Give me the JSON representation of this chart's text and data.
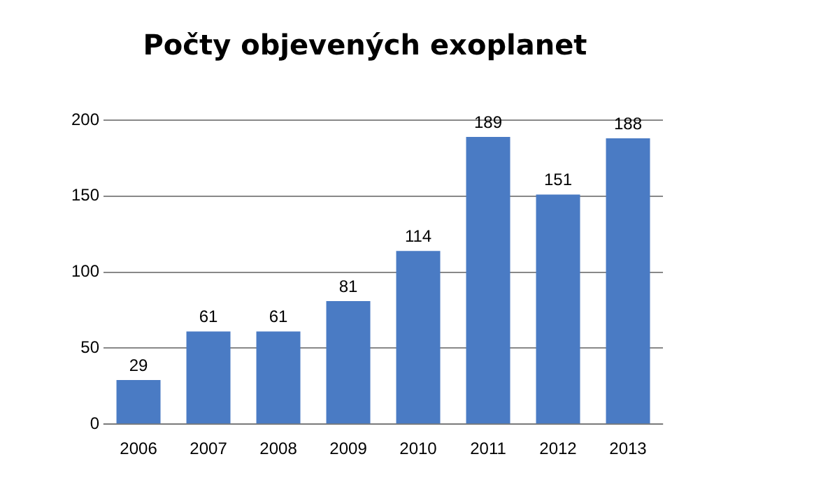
{
  "chart_data": {
    "type": "bar",
    "title": "Počty objevených exoplanet",
    "categories": [
      "2006",
      "2007",
      "2008",
      "2009",
      "2010",
      "2011",
      "2012",
      "2013"
    ],
    "values": [
      29,
      61,
      61,
      81,
      114,
      189,
      151,
      188
    ],
    "color": "#4a7bc4",
    "ylim": [
      0,
      200
    ],
    "yticks": [
      0,
      50,
      100,
      150,
      200
    ],
    "grid": "y",
    "data_labels": true
  }
}
